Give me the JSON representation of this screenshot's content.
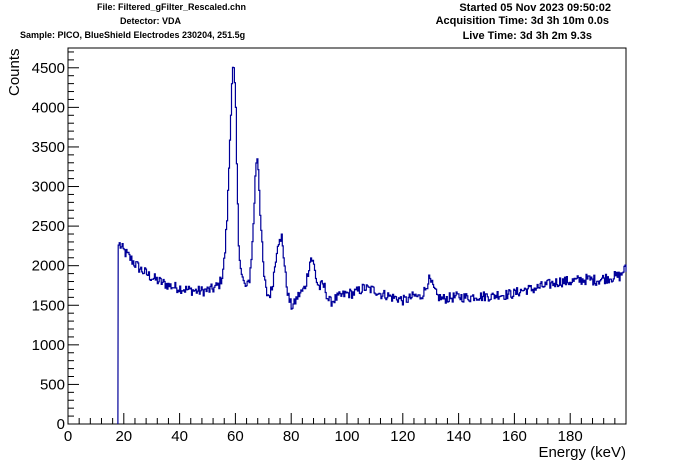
{
  "header": {
    "file": "File: Filtered_gFilter_Rescaled.chn",
    "detector": "Detector: VDA",
    "sample": "Sample: PICO, BlueShield Electrodes 230204, 251.5g",
    "started": "Started 05 Nov 2023 09:50:02",
    "acquisition": "Acquisition Time: 3d 3h 10m 0.0s",
    "live": "Live Time: 3d 3h 2m 9.3s"
  },
  "chart_data": {
    "type": "line",
    "xlabel": "Energy (keV)",
    "ylabel": "Counts",
    "xlim": [
      0,
      200
    ],
    "ylim": [
      0,
      4750
    ],
    "xticks": [
      0,
      20,
      40,
      60,
      80,
      100,
      120,
      140,
      160,
      180
    ],
    "yticks": [
      0,
      500,
      1000,
      1500,
      2000,
      2500,
      3000,
      3500,
      4000,
      4500
    ],
    "grid": false,
    "line_color": "#000099",
    "series": [
      {
        "x": [
          17.9,
          18,
          18.5,
          19,
          20,
          22,
          24,
          26,
          28,
          30,
          32,
          34,
          36,
          38,
          40,
          42,
          44,
          46,
          48,
          50,
          52,
          54,
          55,
          56,
          57,
          58,
          58.5,
          59,
          59.5,
          60,
          60.5,
          61,
          62,
          63,
          64,
          65,
          66,
          67,
          67.5,
          68,
          69,
          70,
          71,
          72,
          73,
          74,
          75,
          75.5,
          76,
          76.5,
          77,
          78,
          79,
          80,
          81,
          82,
          83,
          84,
          85,
          86,
          87,
          88,
          89,
          90,
          91,
          92,
          93,
          94,
          96,
          98,
          100,
          102,
          104,
          106,
          108,
          110,
          112,
          114,
          116,
          118,
          120,
          122,
          124,
          126,
          128,
          129,
          130,
          132,
          134,
          136,
          138,
          140,
          142,
          144,
          146,
          148,
          150,
          152,
          154,
          156,
          158,
          160,
          162,
          164,
          166,
          168,
          170,
          172,
          174,
          176,
          178,
          180,
          182,
          184,
          186,
          188,
          190,
          192,
          194,
          196,
          198,
          199
        ],
        "y": [
          0,
          2260,
          2270,
          2220,
          2180,
          2100,
          2020,
          1950,
          1900,
          1850,
          1810,
          1780,
          1750,
          1730,
          1720,
          1700,
          1690,
          1680,
          1680,
          1690,
          1710,
          1760,
          1850,
          2100,
          2700,
          3700,
          4300,
          4480,
          4400,
          3900,
          3000,
          2300,
          1900,
          1760,
          1720,
          1850,
          2300,
          3100,
          3420,
          3300,
          2500,
          1900,
          1650,
          1620,
          1720,
          2000,
          2300,
          2330,
          2250,
          2380,
          2200,
          1800,
          1580,
          1480,
          1520,
          1600,
          1650,
          1680,
          1750,
          1950,
          2110,
          2000,
          1800,
          1720,
          1760,
          1720,
          1580,
          1540,
          1590,
          1620,
          1650,
          1650,
          1680,
          1720,
          1700,
          1690,
          1640,
          1630,
          1600,
          1590,
          1560,
          1580,
          1620,
          1600,
          1700,
          1830,
          1780,
          1620,
          1580,
          1590,
          1600,
          1610,
          1600,
          1600,
          1620,
          1610,
          1620,
          1610,
          1640,
          1630,
          1640,
          1650,
          1680,
          1700,
          1700,
          1720,
          1740,
          1760,
          1780,
          1800,
          1800,
          1800,
          1810,
          1820,
          1830,
          1820,
          1820,
          1840,
          1850,
          1860,
          1870,
          1950
        ]
      }
    ]
  }
}
